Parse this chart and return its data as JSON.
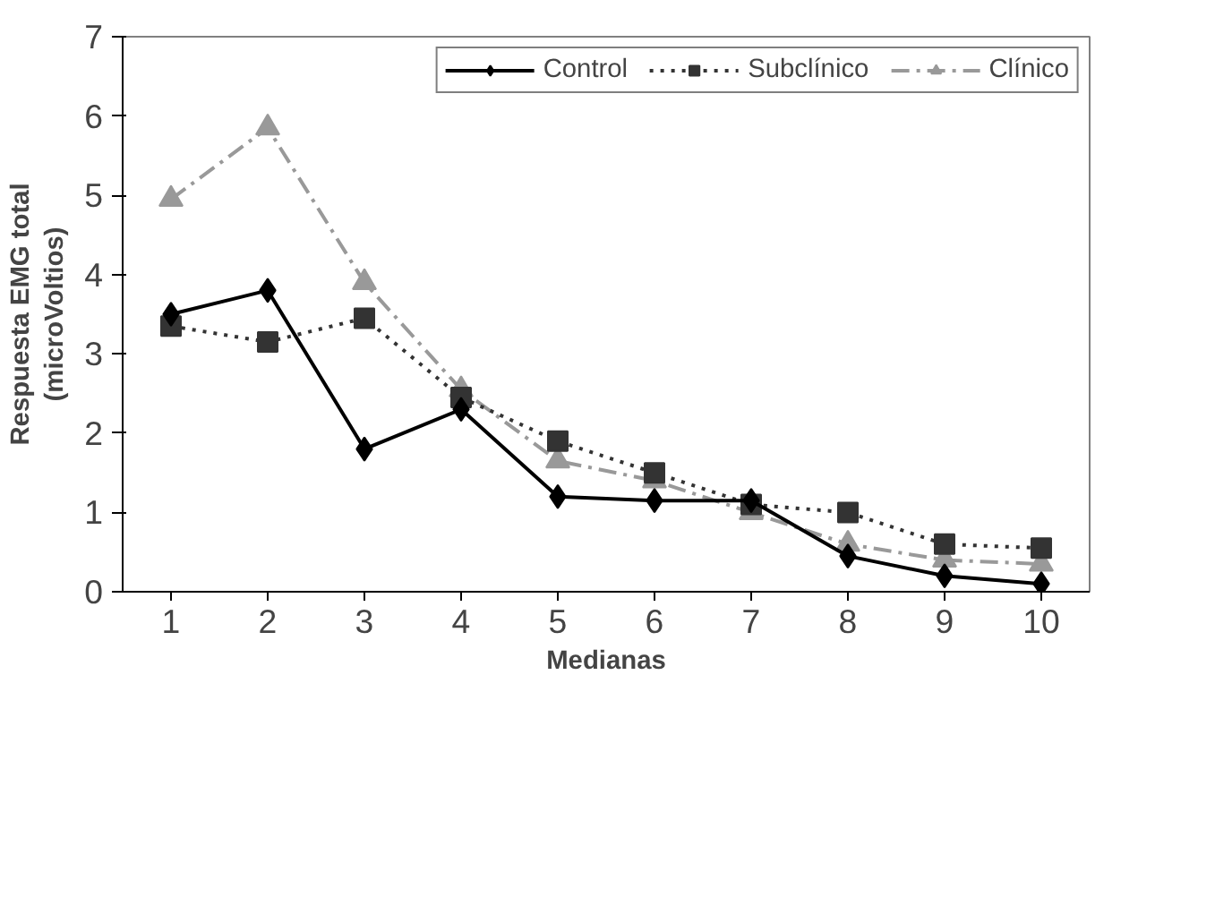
{
  "chart_data": {
    "type": "line",
    "xlabel": "Medianas",
    "ylabel": "Respuesta EMG total\n(microVoltios)",
    "x": [
      1,
      2,
      3,
      4,
      5,
      6,
      7,
      8,
      9,
      10
    ],
    "xlim": [
      0.5,
      10.5
    ],
    "xticks": [
      1,
      2,
      3,
      4,
      5,
      6,
      7,
      8,
      9,
      10
    ],
    "ylim": [
      0,
      7
    ],
    "yticks": [
      0,
      1,
      2,
      3,
      4,
      5,
      6,
      7
    ],
    "grid": false,
    "legend": "top",
    "series": [
      {
        "name": "Control",
        "color": "#000000",
        "marker": "diamond",
        "line_style": "solid",
        "values": [
          3.5,
          3.8,
          1.8,
          2.3,
          1.2,
          1.15,
          1.15,
          0.45,
          0.2,
          0.1
        ]
      },
      {
        "name": "Subclínico",
        "color": "#333333",
        "marker": "square",
        "line_style": "dotted",
        "values": [
          3.35,
          3.15,
          3.45,
          2.45,
          1.9,
          1.5,
          1.1,
          1.0,
          0.6,
          0.55
        ]
      },
      {
        "name": "Clínico",
        "color": "#999999",
        "marker": "triangle",
        "line_style": "dashdot",
        "values": [
          4.95,
          5.85,
          3.9,
          2.55,
          1.65,
          1.4,
          1.0,
          0.6,
          0.4,
          0.35
        ]
      }
    ]
  }
}
